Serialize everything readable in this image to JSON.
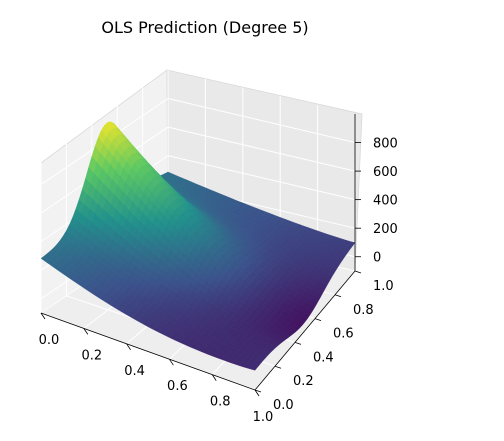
{
  "chart_data": {
    "type": "surface3d",
    "title": "OLS Prediction (Degree 5)",
    "colormap": "viridis",
    "xlim": [
      0.0,
      1.0
    ],
    "ylim": [
      0.0,
      1.0
    ],
    "zlim": [
      -100,
      1000
    ],
    "x_ticks": [
      "0.0",
      "0.2",
      "0.4",
      "0.6",
      "0.8",
      "1.0"
    ],
    "y_ticks": [
      "0.0",
      "0.2",
      "0.4",
      "0.6",
      "0.8",
      "1.0"
    ],
    "z_ticks": [
      "0",
      "200",
      "400",
      "600",
      "800"
    ],
    "grid": true,
    "surface_samples": {
      "y": [
        0.0,
        0.25,
        0.5,
        0.75,
        1.0
      ],
      "z_at_x0": [
        240,
        560,
        920,
        650,
        280
      ],
      "z_at_x1": [
        110,
        20,
        -70,
        -10,
        30
      ]
    }
  }
}
